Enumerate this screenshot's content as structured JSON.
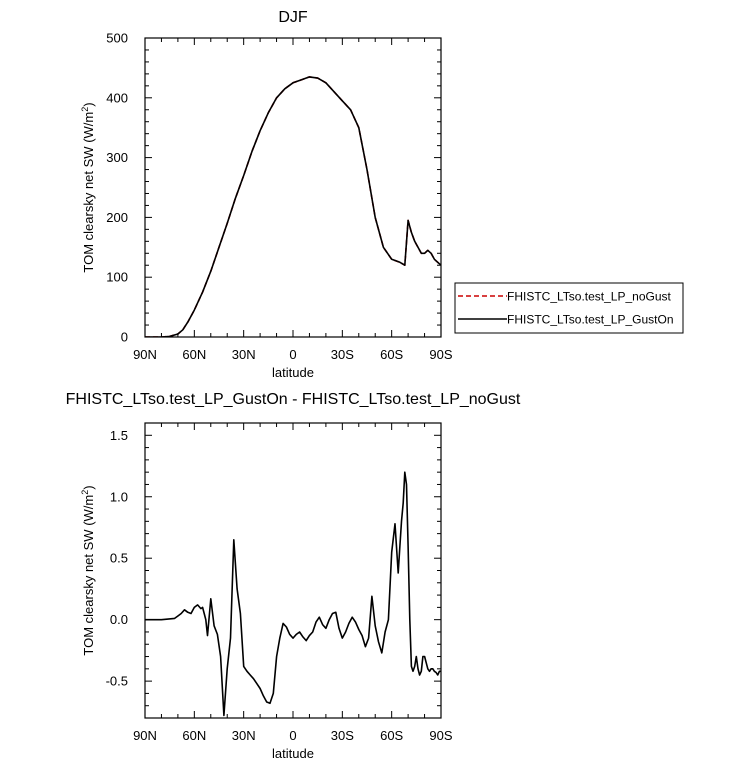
{
  "chart_data": [
    {
      "type": "line",
      "title": "DJF",
      "xlabel": "latitude",
      "ylabel": "TOM clearsky net SW (W/m",
      "ylabel_sup": "2",
      "ylabel_tail": ")",
      "xlim": [
        90,
        -90
      ],
      "ylim": [
        0,
        500
      ],
      "xticks": [
        90,
        60,
        30,
        0,
        -30,
        -60,
        -90
      ],
      "xtick_labels": [
        "90N",
        "60N",
        "30N",
        "0",
        "30S",
        "60S",
        "90S"
      ],
      "yticks": [
        0,
        100,
        200,
        300,
        400,
        500
      ],
      "ytick_labels": [
        "0",
        "100",
        "200",
        "300",
        "400",
        "500"
      ],
      "legend_position": "right",
      "series": [
        {
          "name": "FHISTC_LTso.test_LP_noGust",
          "color": "#cc0000",
          "dash": "dashed",
          "x": [
            90,
            80,
            75,
            70,
            67,
            64,
            60,
            55,
            50,
            45,
            40,
            35,
            30,
            25,
            20,
            15,
            10,
            5,
            0,
            -5,
            -10,
            -15,
            -20,
            -25,
            -30,
            -35,
            -40,
            -45,
            -50,
            -55,
            -60,
            -65,
            -68,
            -70,
            -72,
            -74,
            -76,
            -78,
            -80,
            -82,
            -84,
            -86,
            -88,
            -90
          ],
          "y": [
            0,
            0,
            1,
            5,
            12,
            25,
            45,
            75,
            110,
            150,
            190,
            232,
            270,
            310,
            345,
            375,
            400,
            415,
            425,
            430,
            435,
            433,
            425,
            410,
            395,
            380,
            350,
            280,
            200,
            150,
            130,
            125,
            120,
            195,
            175,
            160,
            150,
            140,
            140,
            145,
            140,
            130,
            125,
            120
          ]
        },
        {
          "name": "FHISTC_LTso.test_LP_GustOn",
          "color": "#000000",
          "dash": "solid",
          "x": [
            90,
            80,
            75,
            70,
            67,
            64,
            60,
            55,
            50,
            45,
            40,
            35,
            30,
            25,
            20,
            15,
            10,
            5,
            0,
            -5,
            -10,
            -15,
            -20,
            -25,
            -30,
            -35,
            -40,
            -45,
            -50,
            -55,
            -60,
            -65,
            -68,
            -70,
            -72,
            -74,
            -76,
            -78,
            -80,
            -82,
            -84,
            -86,
            -88,
            -90
          ],
          "y": [
            0,
            0,
            1,
            5,
            12,
            25,
            45,
            75,
            110,
            150,
            190,
            232,
            270,
            310,
            345,
            375,
            400,
            415,
            425,
            430,
            435,
            433,
            425,
            410,
            395,
            380,
            350,
            280,
            200,
            150,
            130,
            125,
            120,
            195,
            175,
            160,
            150,
            140,
            140,
            145,
            140,
            130,
            125,
            120
          ]
        }
      ]
    },
    {
      "type": "line",
      "title": "FHISTC_LTso.test_LP_GustOn - FHISTC_LTso.test_LP_noGust",
      "xlabel": "latitude",
      "ylabel": "TOM clearsky net SW (W/m",
      "ylabel_sup": "2",
      "ylabel_tail": ")",
      "xlim": [
        90,
        -90
      ],
      "ylim": [
        -0.8,
        1.6
      ],
      "xticks": [
        90,
        60,
        30,
        0,
        -30,
        -60,
        -90
      ],
      "xtick_labels": [
        "90N",
        "60N",
        "30N",
        "0",
        "30S",
        "60S",
        "90S"
      ],
      "yticks": [
        -0.5,
        0.0,
        0.5,
        1.0,
        1.5
      ],
      "ytick_labels": [
        "-0.5",
        "0.0",
        "0.5",
        "1.0",
        "1.5"
      ],
      "series": [
        {
          "color": "#000000",
          "dash": "solid",
          "x": [
            90,
            80,
            72,
            70,
            68,
            66,
            64,
            62,
            60,
            58,
            56,
            55,
            54,
            53,
            52,
            50,
            48,
            46,
            44,
            42,
            40,
            38,
            36,
            34,
            32,
            30,
            28,
            26,
            24,
            22,
            20,
            18,
            16,
            14,
            12,
            10,
            8,
            6,
            4,
            2,
            0,
            -2,
            -4,
            -6,
            -8,
            -10,
            -12,
            -14,
            -16,
            -18,
            -20,
            -22,
            -24,
            -26,
            -28,
            -30,
            -32,
            -34,
            -36,
            -38,
            -40,
            -42,
            -44,
            -46,
            -48,
            -50,
            -52,
            -54,
            -56,
            -58,
            -60,
            -62,
            -64,
            -65,
            -66,
            -67,
            -68,
            -69,
            -70,
            -71,
            -72,
            -73,
            -74,
            -75,
            -76,
            -77,
            -78,
            -79,
            -80,
            -81,
            -82,
            -83,
            -84,
            -85,
            -86,
            -87,
            -88,
            -89,
            -90
          ],
          "y": [
            0.0,
            0.0,
            0.01,
            0.03,
            0.05,
            0.08,
            0.06,
            0.05,
            0.1,
            0.12,
            0.09,
            0.1,
            0.05,
            0.0,
            -0.13,
            0.17,
            -0.05,
            -0.12,
            -0.3,
            -0.78,
            -0.4,
            -0.15,
            0.65,
            0.25,
            0.05,
            -0.38,
            -0.42,
            -0.45,
            -0.48,
            -0.52,
            -0.56,
            -0.62,
            -0.67,
            -0.68,
            -0.6,
            -0.3,
            -0.15,
            -0.03,
            -0.06,
            -0.12,
            -0.15,
            -0.12,
            -0.1,
            -0.14,
            -0.17,
            -0.13,
            -0.1,
            -0.02,
            0.02,
            -0.04,
            -0.07,
            0.0,
            0.05,
            0.06,
            -0.07,
            -0.15,
            -0.1,
            -0.03,
            0.02,
            -0.02,
            -0.08,
            -0.13,
            -0.22,
            -0.15,
            0.19,
            -0.05,
            -0.18,
            -0.27,
            -0.1,
            0.0,
            0.55,
            0.78,
            0.38,
            0.6,
            0.8,
            0.95,
            1.2,
            1.1,
            0.6,
            0.0,
            -0.38,
            -0.42,
            -0.38,
            -0.3,
            -0.4,
            -0.45,
            -0.42,
            -0.3,
            -0.3,
            -0.35,
            -0.4,
            -0.42,
            -0.4,
            -0.4,
            -0.42,
            -0.43,
            -0.45,
            -0.42,
            -0.42
          ]
        }
      ]
    }
  ]
}
